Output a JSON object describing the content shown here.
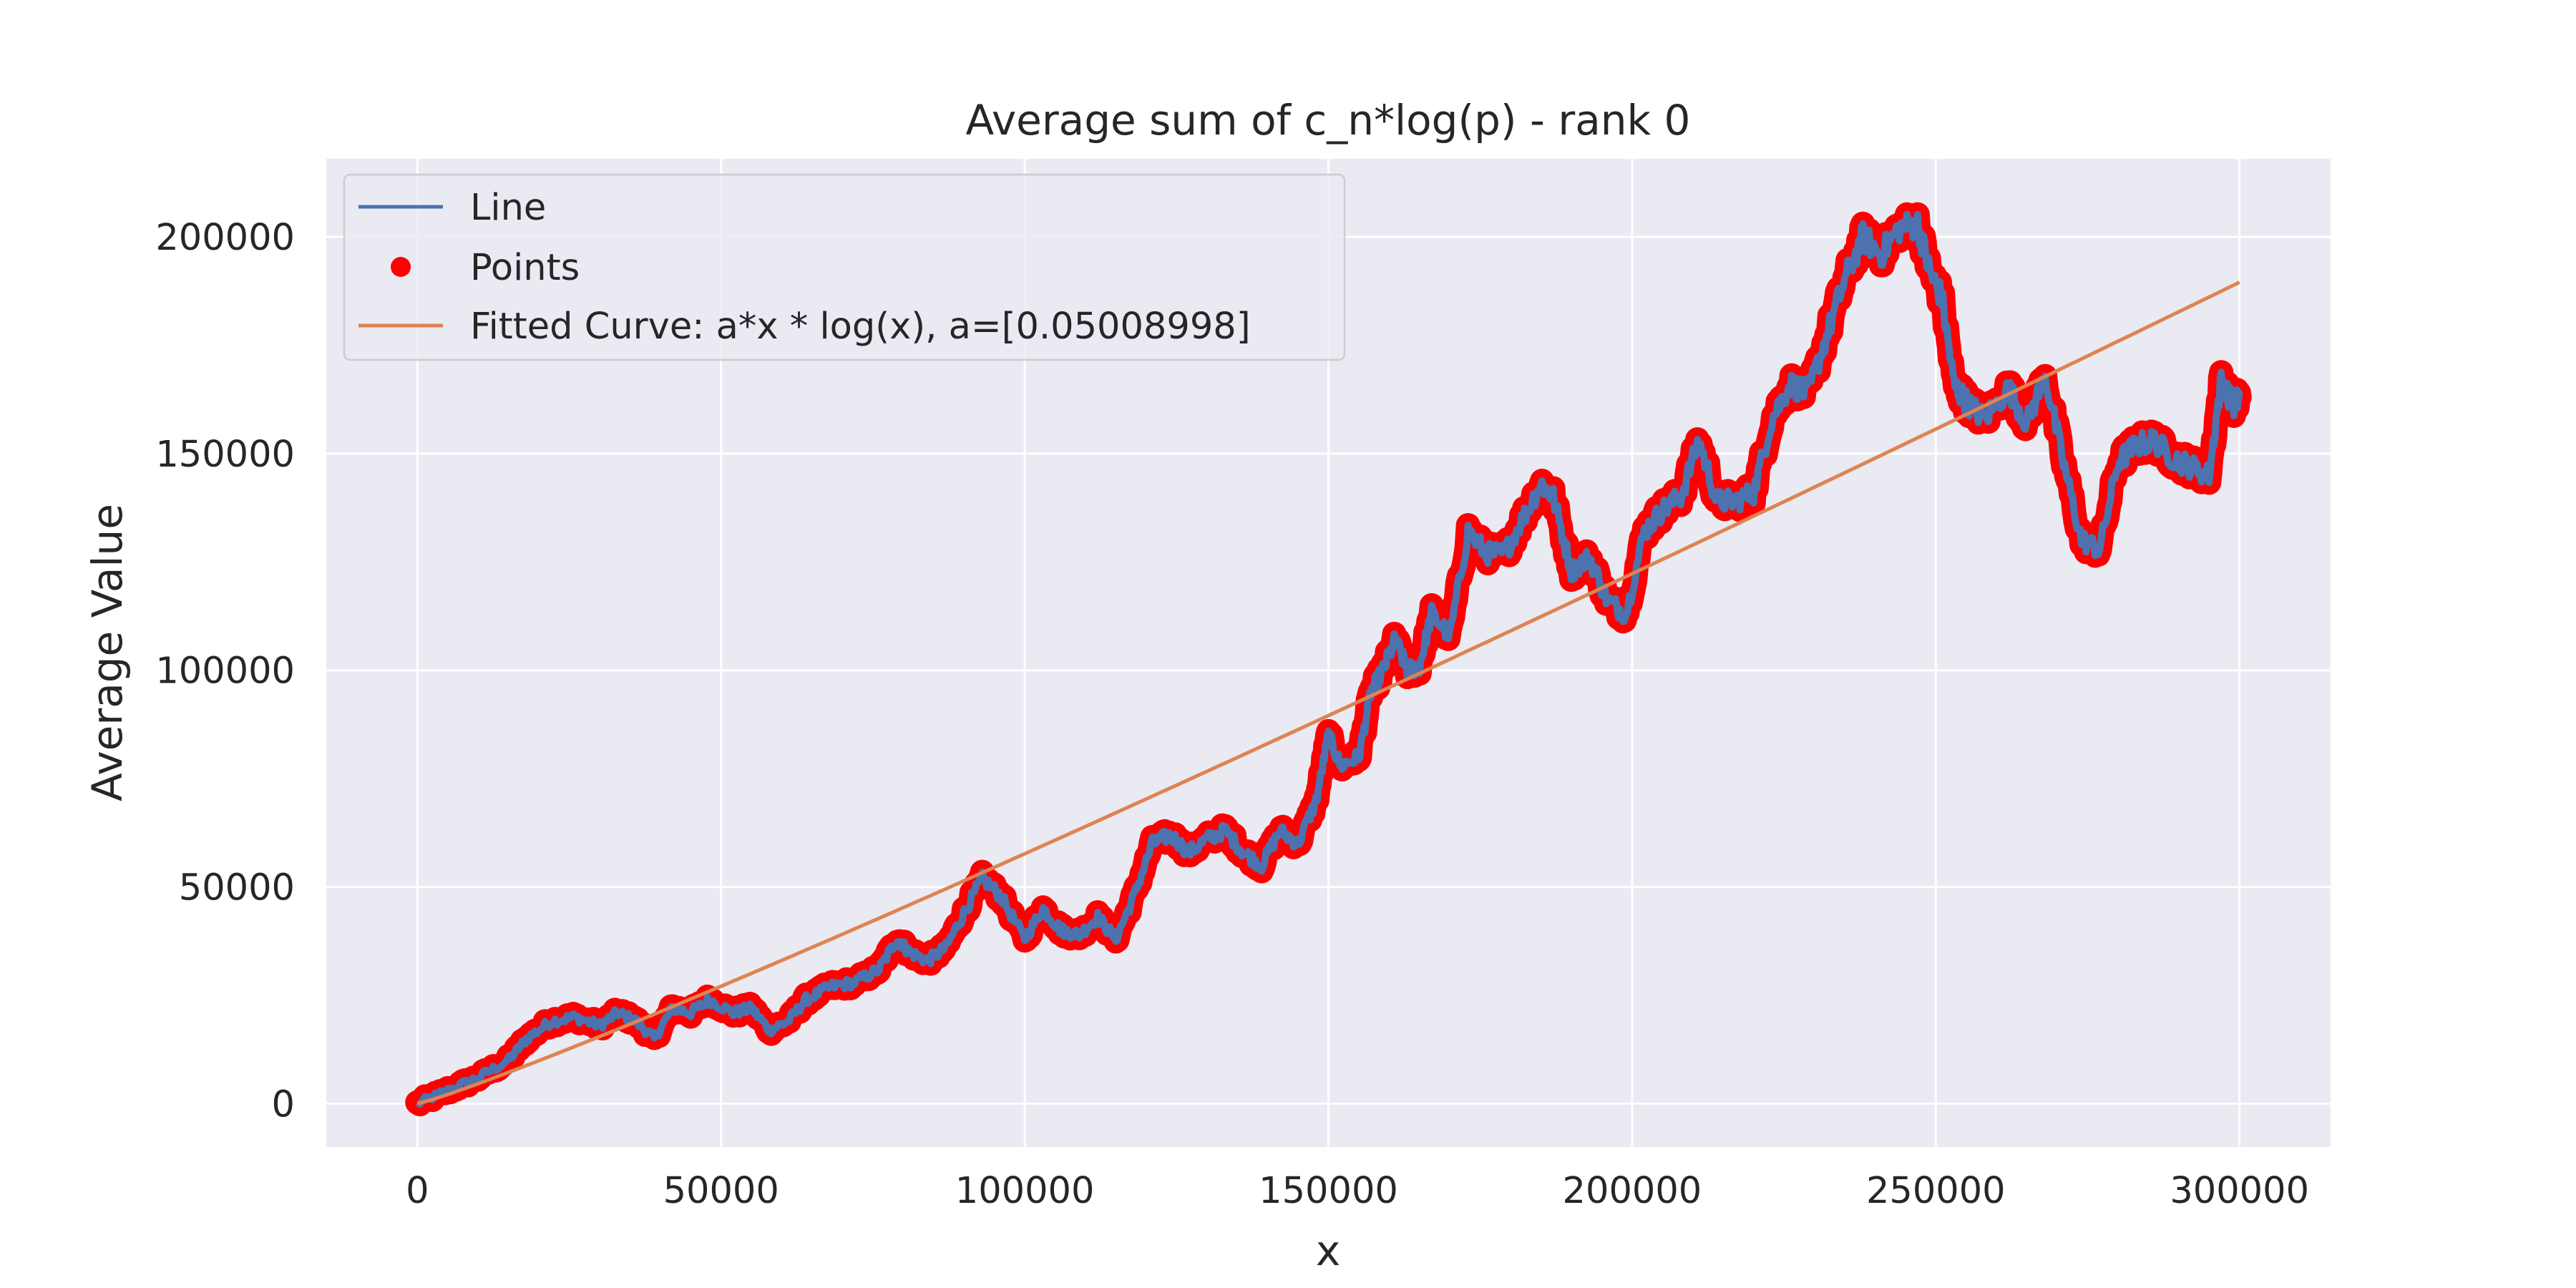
{
  "chart_data": {
    "type": "line",
    "title": "Average sum of c_n*log(p) - rank 0",
    "xlabel": "x",
    "ylabel": "Average Value",
    "xlim": [
      -15000,
      315000
    ],
    "ylim": [
      -10000,
      218000
    ],
    "xticks": [
      0,
      50000,
      100000,
      150000,
      200000,
      250000,
      300000
    ],
    "yticks": [
      0,
      50000,
      100000,
      150000,
      200000
    ],
    "xtick_labels": [
      "0",
      "50000",
      "100000",
      "150000",
      "200000",
      "250000",
      "300000"
    ],
    "ytick_labels": [
      "0",
      "50000",
      "100000",
      "150000",
      "200000"
    ],
    "grid": true,
    "legend_position": "top-left",
    "legend": [
      {
        "label": "Line",
        "kind": "line",
        "color": "#4c72b0"
      },
      {
        "label": "Points",
        "kind": "marker",
        "color": "#ff0000"
      },
      {
        "label": "Fitted Curve: a*x * log(x), a=[0.05008998]",
        "kind": "line",
        "color": "#dd8452"
      }
    ],
    "series": [
      {
        "name": "Line",
        "kind": "line",
        "color": "#4c72b0",
        "x": [
          0,
          5000,
          10000,
          15000,
          18000,
          22000,
          26000,
          30000,
          33000,
          36000,
          39000,
          42000,
          45000,
          48000,
          52000,
          55000,
          58000,
          61000,
          64000,
          68000,
          72000,
          76000,
          79000,
          81000,
          84000,
          87000,
          90000,
          93000,
          96000,
          100000,
          103000,
          106000,
          109000,
          112000,
          115000,
          118000,
          121000,
          124000,
          127000,
          130000,
          133000,
          136000,
          139000,
          142000,
          145000,
          148000,
          150000,
          152000,
          155000,
          157000,
          159000,
          161000,
          163000,
          165000,
          167000,
          170000,
          173000,
          176000,
          179000,
          182000,
          185000,
          187000,
          190000,
          193000,
          196000,
          199000,
          202000,
          205000,
          208000,
          211000,
          214000,
          217000,
          220000,
          223000,
          226000,
          229000,
          232000,
          235000,
          238000,
          241000,
          244000,
          247000,
          249000,
          251000,
          253000,
          255000,
          258000,
          262000,
          265000,
          268000,
          271000,
          274000,
          277000,
          280000,
          283000,
          286000,
          289000,
          292000,
          295000,
          297000,
          299000,
          300000
        ],
        "y": [
          0,
          3000,
          6000,
          10000,
          15000,
          19000,
          20000,
          18000,
          21000,
          19000,
          15000,
          22000,
          21000,
          24000,
          21000,
          22000,
          17000,
          19000,
          24000,
          27000,
          28000,
          31000,
          38000,
          35000,
          33000,
          36000,
          44000,
          52000,
          48000,
          38000,
          45000,
          40000,
          39000,
          43000,
          38000,
          48000,
          60000,
          62000,
          58000,
          61000,
          63000,
          58000,
          55000,
          63000,
          60000,
          70000,
          85000,
          78000,
          80000,
          95000,
          100000,
          107000,
          100000,
          101000,
          113000,
          108000,
          132000,
          127000,
          127000,
          135000,
          143000,
          140000,
          123000,
          126000,
          116000,
          113000,
          132000,
          137000,
          140000,
          153000,
          139000,
          139000,
          141000,
          158000,
          166000,
          164000,
          177000,
          190000,
          200000,
          196000,
          202000,
          203000,
          192000,
          186000,
          166000,
          162000,
          158000,
          165000,
          157000,
          168000,
          148000,
          130000,
          128000,
          148000,
          152000,
          153000,
          149000,
          147000,
          145000,
          167000,
          161000,
          163000
        ]
      },
      {
        "name": "Points",
        "kind": "scatter",
        "color": "#ff0000"
      },
      {
        "name": "Fitted Curve: a*x * log(x), a=[0.05008998]",
        "kind": "fit",
        "color": "#dd8452",
        "formula": "a*x*log(x)",
        "a": 0.05008998,
        "x_range": [
          1,
          300000
        ]
      }
    ]
  }
}
